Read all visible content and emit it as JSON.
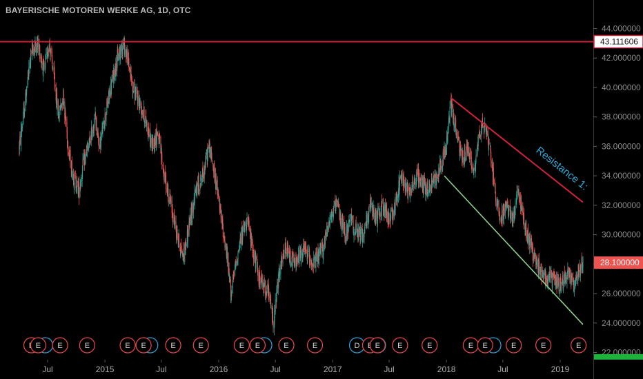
{
  "title": "BAYERISCHE MOTOREN WERKE AG, 1D, OTC",
  "chart_data": {
    "type": "candlestick",
    "y_axis": {
      "position": "right",
      "ticks": [
        "22.000000",
        "24.000000",
        "26.000000",
        "28.000000",
        "30.000000",
        "32.000000",
        "34.000000",
        "36.000000",
        "38.000000",
        "40.000000",
        "42.000000",
        "44.000000"
      ],
      "tick_values": [
        22,
        24,
        26,
        28,
        30,
        32,
        34,
        36,
        38,
        40,
        42,
        44
      ],
      "range": [
        21.5,
        44.6
      ]
    },
    "x_axis": {
      "labels": [
        "Jul",
        "2015",
        "Jul",
        "2016",
        "Jul",
        "2017",
        "Jul",
        "2018",
        "Jul",
        "2019"
      ],
      "dates": [
        "2014-07-01",
        "2015-01-01",
        "2015-07-01",
        "2016-01-01",
        "2016-07-01",
        "2017-01-01",
        "2017-07-01",
        "2018-01-01",
        "2018-07-01",
        "2019-01-01"
      ],
      "range": [
        "2014-04-01",
        "2019-03-15"
      ]
    },
    "colors": {
      "up": "#26a69a",
      "down": "#ef5350",
      "resistance_line": "#d0223a",
      "support_line": "#8fd18f",
      "horizontal_line": "#d0223a",
      "earnings_marker": "#e0474c",
      "dividend_marker": "#2a9fd6",
      "price_label_bg": "#ef5350",
      "bottom_label_bg": "#1db33a"
    },
    "price_labels": [
      {
        "text": "43.111606",
        "value": 43.111606,
        "style": "outline"
      },
      {
        "text": "28.100000",
        "value": 28.1,
        "style": "filled"
      }
    ],
    "horizontal_line": {
      "value": 43.111606
    },
    "trendlines": [
      {
        "name": "Resistance 1:",
        "from": {
          "date": "2018-01-15",
          "value": 39.3
        },
        "to": {
          "date": "2019-03-15",
          "value": 32.2
        }
      },
      {
        "from": {
          "date": "2017-12-25",
          "value": 34.0
        },
        "to": {
          "date": "2019-03-15",
          "value": 23.9
        }
      }
    ],
    "annotations": [
      {
        "text": "Resistance 1:"
      }
    ],
    "events": [
      {
        "type": "E",
        "date": "2014-05-10"
      },
      {
        "type": "E",
        "date": "2014-06-01"
      },
      {
        "type": "E",
        "date": "2014-08-10"
      },
      {
        "type": "E",
        "date": "2014-11-05"
      },
      {
        "type": "E",
        "date": "2015-03-15"
      },
      {
        "type": "E",
        "date": "2015-05-05"
      },
      {
        "type": "E",
        "date": "2015-08-08"
      },
      {
        "type": "E",
        "date": "2015-11-05"
      },
      {
        "type": "E",
        "date": "2016-03-15"
      },
      {
        "type": "E",
        "date": "2016-05-05"
      },
      {
        "type": "E",
        "date": "2016-08-05"
      },
      {
        "type": "E",
        "date": "2016-11-05"
      },
      {
        "type": "D",
        "date": "2017-03-20"
      },
      {
        "type": "E",
        "date": "2017-05-01"
      },
      {
        "type": "E",
        "date": "2017-05-25"
      },
      {
        "type": "E",
        "date": "2017-08-05"
      },
      {
        "type": "E",
        "date": "2017-11-08"
      },
      {
        "type": "E",
        "date": "2018-03-20"
      },
      {
        "type": "E",
        "date": "2018-05-05"
      },
      {
        "type": "E",
        "date": "2018-08-05"
      },
      {
        "type": "E",
        "date": "2018-11-08"
      },
      {
        "type": "E",
        "date": "2019-03-01"
      }
    ],
    "dividend_rings": [
      "2014-06-10",
      "2015-05-13",
      "2016-05-13",
      "2017-05-13",
      "2018-05-18"
    ],
    "price_path": [
      [
        "2014-04-01",
        36
      ],
      [
        "2014-04-20",
        39
      ],
      [
        "2014-05-10",
        42.5
      ],
      [
        "2014-06-01",
        43
      ],
      [
        "2014-06-20",
        41
      ],
      [
        "2014-07-05",
        43.1
      ],
      [
        "2014-07-20",
        41
      ],
      [
        "2014-08-05",
        38
      ],
      [
        "2014-08-20",
        39.5
      ],
      [
        "2014-09-05",
        36
      ],
      [
        "2014-09-20",
        34
      ],
      [
        "2014-10-10",
        33
      ],
      [
        "2014-10-25",
        35
      ],
      [
        "2014-11-10",
        36
      ],
      [
        "2014-12-01",
        38
      ],
      [
        "2014-12-15",
        36
      ],
      [
        "2015-01-01",
        38
      ],
      [
        "2015-01-20",
        40
      ],
      [
        "2015-02-10",
        42
      ],
      [
        "2015-03-01",
        43
      ],
      [
        "2015-03-15",
        42
      ],
      [
        "2015-04-01",
        40
      ],
      [
        "2015-04-20",
        39
      ],
      [
        "2015-05-10",
        38
      ],
      [
        "2015-06-01",
        36
      ],
      [
        "2015-06-20",
        37
      ],
      [
        "2015-07-10",
        34
      ],
      [
        "2015-08-01",
        32
      ],
      [
        "2015-08-20",
        30
      ],
      [
        "2015-09-10",
        28.5
      ],
      [
        "2015-10-01",
        31
      ],
      [
        "2015-10-20",
        33
      ],
      [
        "2015-11-10",
        34
      ],
      [
        "2015-12-01",
        36
      ],
      [
        "2015-12-20",
        34
      ],
      [
        "2016-01-10",
        31
      ],
      [
        "2016-01-25",
        29
      ],
      [
        "2016-02-10",
        26
      ],
      [
        "2016-02-25",
        28
      ],
      [
        "2016-03-15",
        30
      ],
      [
        "2016-04-01",
        31
      ],
      [
        "2016-04-20",
        29
      ],
      [
        "2016-05-10",
        27
      ],
      [
        "2016-06-10",
        26
      ],
      [
        "2016-06-25",
        24
      ],
      [
        "2016-07-10",
        27
      ],
      [
        "2016-08-01",
        29
      ],
      [
        "2016-09-01",
        28
      ],
      [
        "2016-10-01",
        29
      ],
      [
        "2016-11-01",
        28
      ],
      [
        "2016-12-01",
        29
      ],
      [
        "2016-12-20",
        31
      ],
      [
        "2017-01-15",
        32
      ],
      [
        "2017-02-10",
        30
      ],
      [
        "2017-03-01",
        31
      ],
      [
        "2017-03-20",
        30
      ],
      [
        "2017-04-10",
        30
      ],
      [
        "2017-05-01",
        32
      ],
      [
        "2017-05-20",
        31
      ],
      [
        "2017-06-10",
        32
      ],
      [
        "2017-07-01",
        31
      ],
      [
        "2017-07-20",
        32
      ],
      [
        "2017-08-10",
        34
      ],
      [
        "2017-09-01",
        33
      ],
      [
        "2017-10-01",
        34
      ],
      [
        "2017-11-01",
        33
      ],
      [
        "2017-12-01",
        34
      ],
      [
        "2018-01-01",
        36
      ],
      [
        "2018-01-15",
        39
      ],
      [
        "2018-02-01",
        37
      ],
      [
        "2018-02-20",
        35
      ],
      [
        "2018-03-10",
        36
      ],
      [
        "2018-04-01",
        34
      ],
      [
        "2018-04-15",
        37
      ],
      [
        "2018-05-05",
        37.5
      ],
      [
        "2018-05-20",
        36
      ],
      [
        "2018-06-05",
        33
      ],
      [
        "2018-06-25",
        31
      ],
      [
        "2018-07-10",
        32
      ],
      [
        "2018-08-01",
        31
      ],
      [
        "2018-08-20",
        33
      ],
      [
        "2018-09-05",
        31
      ],
      [
        "2018-09-25",
        29.5
      ],
      [
        "2018-10-15",
        28
      ],
      [
        "2018-11-05",
        27.5
      ],
      [
        "2018-11-25",
        27
      ],
      [
        "2018-12-15",
        27
      ],
      [
        "2019-01-05",
        26.5
      ],
      [
        "2019-01-25",
        27.5
      ],
      [
        "2019-02-15",
        26.5
      ],
      [
        "2019-03-01",
        27.5
      ],
      [
        "2019-03-15",
        28.1
      ]
    ],
    "bottom_label": {
      "value": 21.75
    }
  }
}
